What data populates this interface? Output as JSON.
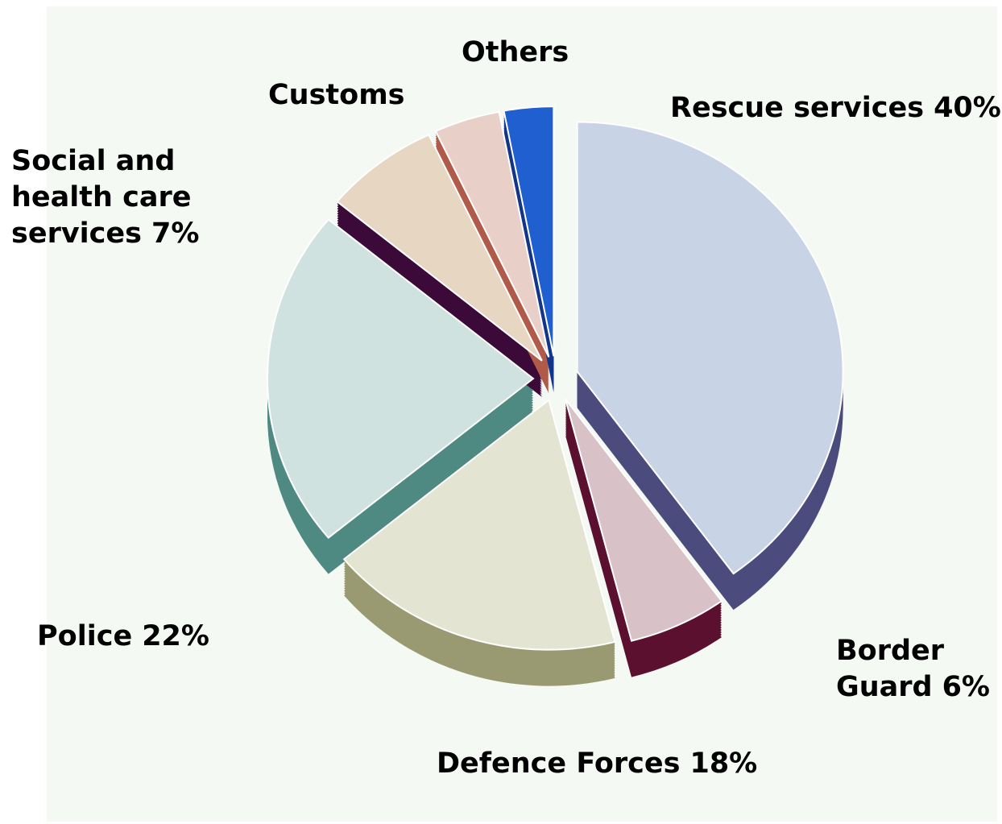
{
  "chart_data": {
    "type": "pie",
    "categories": [
      "Rescue services",
      "Border Guard",
      "Defence Forces",
      "Police",
      "Social and health care services",
      "Customs",
      "Others"
    ],
    "values": [
      40,
      6,
      18,
      22,
      7,
      4,
      3
    ],
    "value_labels": [
      "40%",
      "6%",
      "18%",
      "22%",
      "7%",
      null,
      null
    ],
    "colors": [
      "#c9d3e6",
      "#d8c2c8",
      "#e4e4d2",
      "#cfe2df",
      "#e6d6c2",
      "#e8cfc8",
      "#1f5fd0"
    ],
    "side_colors": [
      "#4b4b7d",
      "#5c1030",
      "#9a9a72",
      "#4f8a82",
      "#3c0a38",
      "#b05a4a",
      "#12368a"
    ]
  }
}
